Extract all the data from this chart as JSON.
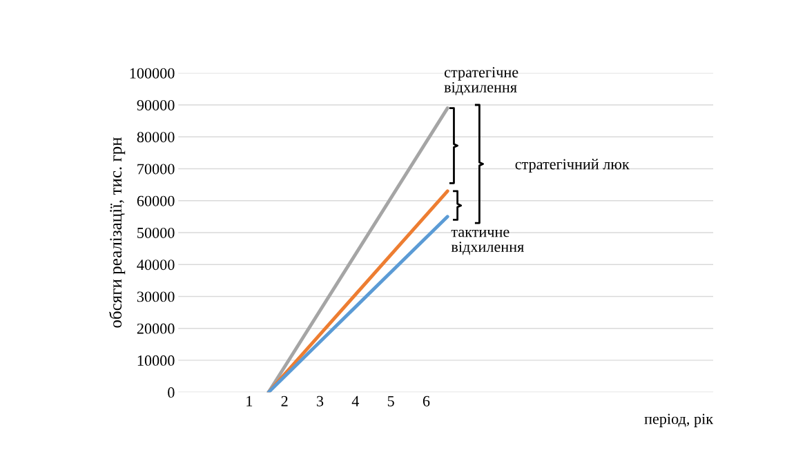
{
  "chart_data": {
    "type": "line",
    "xlabel": "період, рік",
    "ylabel": "обсяги реалізації, тис. грн",
    "xlim": [
      -1,
      14.1
    ],
    "xticks": [
      1,
      2,
      3,
      4,
      5,
      6
    ],
    "ylim": [
      0,
      100000
    ],
    "yticks": [
      0,
      10000,
      20000,
      30000,
      40000,
      50000,
      60000,
      70000,
      80000,
      90000,
      100000
    ],
    "grid": "y",
    "legend": false,
    "marker": "none",
    "x": [
      1.55,
      6.6
    ],
    "series": [
      {
        "color": "#a5a5a5",
        "values": [
          0,
          89000
        ]
      },
      {
        "color": "#ed7d31",
        "values": [
          0,
          63000
        ]
      },
      {
        "color": "#5b9bd5",
        "values": [
          0,
          55000
        ]
      }
    ],
    "annotations": [
      "стратегічне\nвідхилення",
      "стратегічний люк",
      "тактичне\nвідхилення"
    ]
  }
}
